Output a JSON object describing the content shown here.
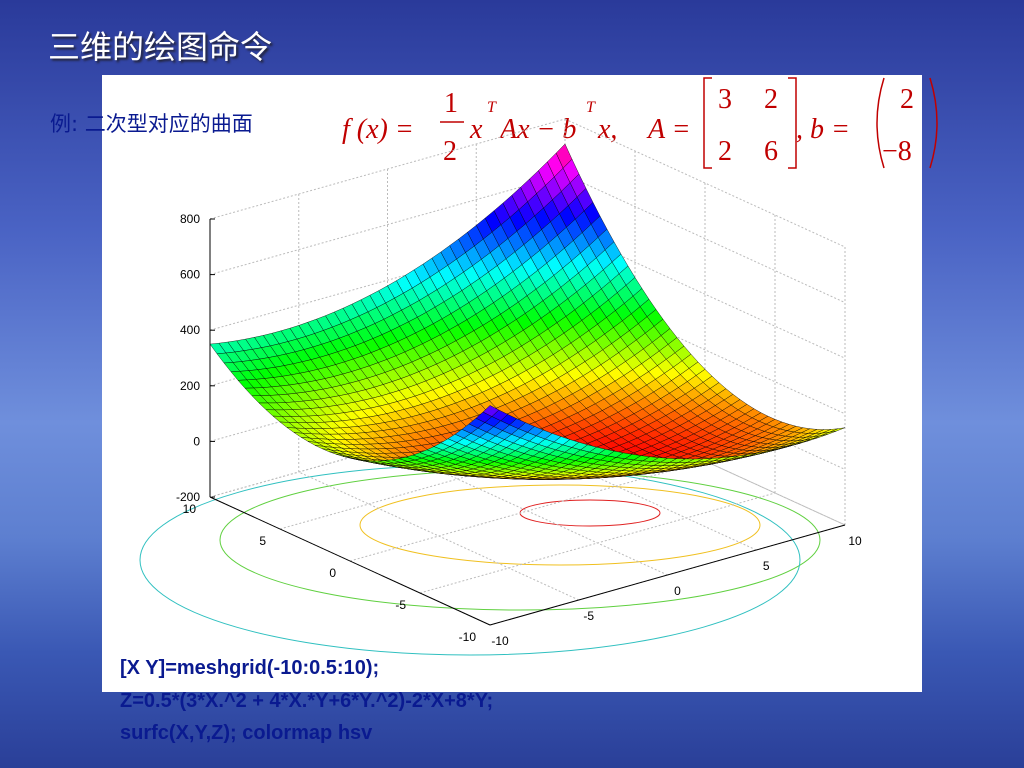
{
  "title": "三维的绘图命令",
  "example": "例: 二次型对应的曲面",
  "formula": {
    "lhs": "f (x) =",
    "num": "1",
    "den": "2",
    "x": "x",
    "T1": "T",
    "mid": "Ax − b",
    "T2": "T",
    "tail": "x,",
    "A_label": "A =",
    "A": [
      [
        3,
        2
      ],
      [
        2,
        6
      ]
    ],
    "b_label": ", b =",
    "b": [
      2,
      -8
    ],
    "b_labels": [
      "2",
      "−8"
    ]
  },
  "plot": {
    "xticks": [
      -10,
      -5,
      0,
      5,
      10
    ],
    "yticks": [
      -10,
      -5,
      0,
      5,
      10
    ],
    "zticks": [
      -200,
      0,
      200,
      400,
      600,
      800
    ]
  },
  "code": [
    "[X Y]=meshgrid(-10:0.5:10);",
    "Z=0.5*(3*X.^2 + 4*X.*Y+6*Y.^2)-2*X+8*Y;",
    "surfc(X,Y,Z); colormap hsv"
  ]
}
